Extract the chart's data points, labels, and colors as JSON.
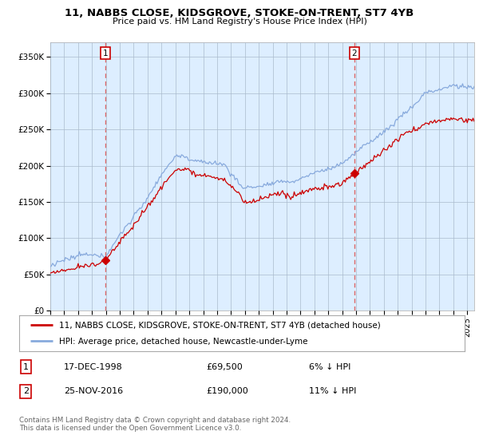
{
  "title": "11, NABBS CLOSE, KIDSGROVE, STOKE-ON-TRENT, ST7 4YB",
  "subtitle": "Price paid vs. HM Land Registry's House Price Index (HPI)",
  "legend_line1": "11, NABBS CLOSE, KIDSGROVE, STOKE-ON-TRENT, ST7 4YB (detached house)",
  "legend_line2": "HPI: Average price, detached house, Newcastle-under-Lyme",
  "transaction1_num": "1",
  "transaction1_date": "17-DEC-1998",
  "transaction1_price": "£69,500",
  "transaction1_hpi": "6% ↓ HPI",
  "transaction2_num": "2",
  "transaction2_date": "25-NOV-2016",
  "transaction2_price": "£190,000",
  "transaction2_hpi": "11% ↓ HPI",
  "footer": "Contains HM Land Registry data © Crown copyright and database right 2024.\nThis data is licensed under the Open Government Licence v3.0.",
  "ylim": [
    0,
    370000
  ],
  "yticks": [
    0,
    50000,
    100000,
    150000,
    200000,
    250000,
    300000,
    350000
  ],
  "background_color": "#ffffff",
  "chart_bg_color": "#ddeeff",
  "grid_color": "#aabbcc",
  "red_color": "#cc0000",
  "blue_color": "#88aadd",
  "marker_line_color": "#dd6666",
  "t1_x": 1998.96,
  "t1_y": 69500,
  "t2_x": 2016.87,
  "t2_y": 190000,
  "xlim_left": 1995.0,
  "xlim_right": 2025.5
}
